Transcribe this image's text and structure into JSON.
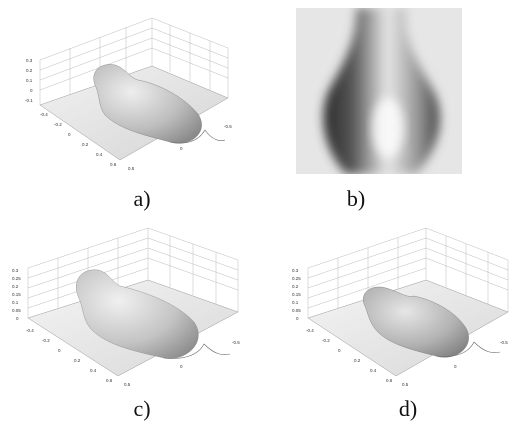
{
  "figure": {
    "panels": [
      {
        "id": "a",
        "caption": "a)",
        "kind": "surface-3d",
        "z_ticks": [
          "0.3",
          "0.2",
          "0.1",
          "0",
          "-0.1"
        ],
        "y_ticks": [
          "-0.6",
          "-0.4",
          "-0.2",
          "0",
          "0.2",
          "0.4",
          "0.6"
        ],
        "x_ticks": [
          "0.5",
          "0",
          "-0.5"
        ]
      },
      {
        "id": "b",
        "caption": "b)",
        "kind": "grayscale-image"
      },
      {
        "id": "c",
        "caption": "c)",
        "kind": "surface-3d",
        "z_ticks": [
          "0.3",
          "0.25",
          "0.2",
          "0.15",
          "0.1",
          "0.05",
          "0"
        ],
        "y_ticks": [
          "-0.6",
          "-0.4",
          "-0.2",
          "0",
          "0.2",
          "0.4",
          "0.6"
        ],
        "x_ticks": [
          "0.5",
          "0",
          "-0.5"
        ]
      },
      {
        "id": "d",
        "caption": "d)",
        "kind": "surface-3d",
        "z_ticks": [
          "0.3",
          "0.25",
          "0.2",
          "0.15",
          "0.1",
          "0.05",
          "0"
        ],
        "y_ticks": [
          "-0.6",
          "-0.4",
          "-0.2",
          "0",
          "0.2",
          "0.4",
          "0.6"
        ],
        "x_ticks": [
          "0.5",
          "0",
          "-0.5"
        ]
      }
    ]
  },
  "colors": {
    "ink": "#111111",
    "surface": "#c8c8c8",
    "background": "#ffffff"
  }
}
